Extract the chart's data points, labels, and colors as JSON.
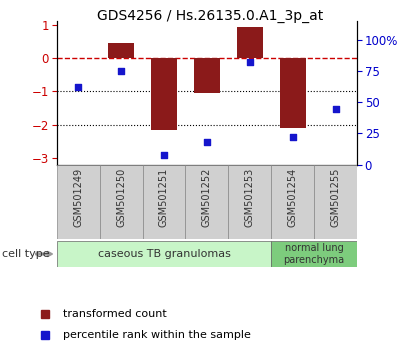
{
  "title": "GDS4256 / Hs.26135.0.A1_3p_at",
  "samples": [
    "GSM501249",
    "GSM501250",
    "GSM501251",
    "GSM501252",
    "GSM501253",
    "GSM501254",
    "GSM501255"
  ],
  "transformed_count": [
    0.0,
    0.45,
    -2.15,
    -1.05,
    0.92,
    -2.1,
    0.0
  ],
  "percentile_rank": [
    62,
    75,
    8,
    18,
    82,
    22,
    45
  ],
  "ylim_left": [
    -3.2,
    1.1
  ],
  "ylim_right": [
    0,
    115
  ],
  "yticks_left": [
    -3,
    -2,
    -1,
    0,
    1
  ],
  "yticks_right": [
    0,
    25,
    50,
    75,
    100
  ],
  "yticklabels_right": [
    "0",
    "25",
    "50",
    "75",
    "100%"
  ],
  "bar_color": "#8B1A1A",
  "dot_color": "#1515CC",
  "dashed_line_color": "#CC0000",
  "dotted_line_color": "#000000",
  "group1_label": "caseous TB granulomas",
  "group1_color": "#c8f5c8",
  "group2_label": "normal lung\nparenchyma",
  "group2_color": "#7dcc7d",
  "group1_samples": 5,
  "group2_samples": 2,
  "legend_bar_label": "transformed count",
  "legend_dot_label": "percentile rank within the sample",
  "cell_type_label": "cell type",
  "background_color": "#ffffff",
  "bar_width": 0.6,
  "box_color": "#d0d0d0",
  "left_tick_color": "#CC0000",
  "right_tick_color": "#0000CC"
}
